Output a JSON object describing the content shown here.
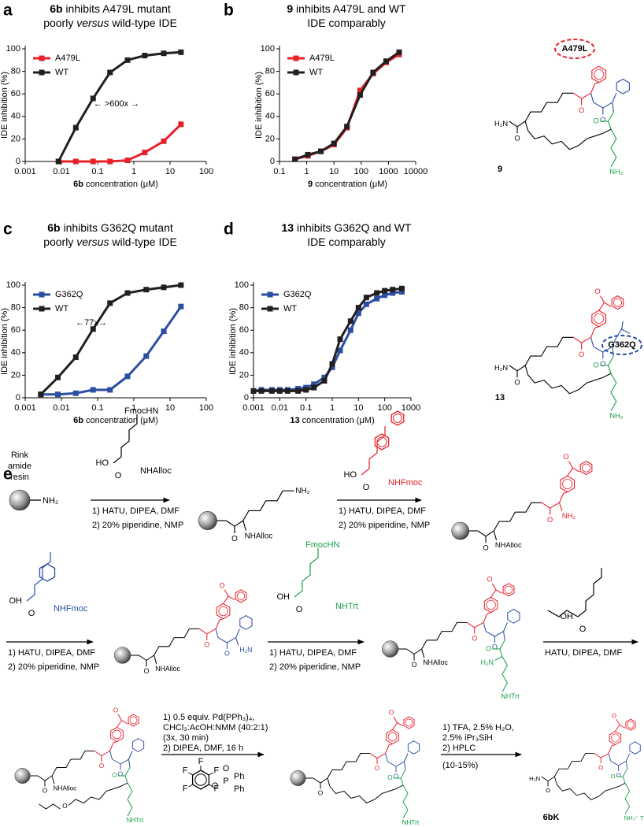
{
  "chart_data": [
    {
      "panel": "a",
      "type": "line",
      "title_lines": [
        [
          "6b",
          " inhibits A479L mutant"
        ],
        [
          "poorly ",
          "versus",
          " wild-type IDE"
        ]
      ],
      "xlabel": [
        "6b",
        " concentration (μM)"
      ],
      "ylabel": "IDE inhibition (%)",
      "x_scale": "log",
      "xlim": [
        0.001,
        100
      ],
      "xticks": [
        0.001,
        0.01,
        0.1,
        1,
        10,
        100
      ],
      "ylim": [
        0,
        100
      ],
      "yticks": [
        0,
        20,
        40,
        60,
        80,
        100
      ],
      "legend": "upper left",
      "annotation": "← >600x →",
      "x": [
        0.0083,
        0.025,
        0.075,
        0.22,
        0.67,
        2,
        6.7,
        20
      ],
      "series": [
        {
          "name": "A479L",
          "color": "#e8202a",
          "values": [
            0,
            0,
            0,
            0,
            1,
            8,
            18,
            33
          ]
        },
        {
          "name": "WT",
          "color": "#231f20",
          "values": [
            0,
            30,
            56,
            79,
            90,
            94,
            96,
            97
          ]
        }
      ]
    },
    {
      "panel": "b",
      "type": "line",
      "title_lines": [
        [
          "9",
          " inhibits A479L and WT"
        ],
        [
          "IDE comparably"
        ]
      ],
      "xlabel": [
        "9",
        " concentration (μM)"
      ],
      "ylabel": "IDE inhibition (%)",
      "x_scale": "log",
      "xlim": [
        0.1,
        10000
      ],
      "xticks": [
        0.1,
        1,
        10,
        100,
        1000,
        10000
      ],
      "ylim": [
        0,
        100
      ],
      "yticks": [
        0,
        20,
        40,
        60,
        80,
        100
      ],
      "legend": "upper left",
      "x": [
        0.37,
        1.1,
        3.3,
        10,
        30,
        91,
        274,
        823,
        2469
      ],
      "series": [
        {
          "name": "A479L",
          "color": "#e8202a",
          "values": [
            2,
            5,
            9,
            15,
            30,
            63,
            78,
            88,
            95
          ]
        },
        {
          "name": "WT",
          "color": "#231f20",
          "values": [
            2,
            6,
            9,
            16,
            31,
            59,
            79,
            89,
            97
          ]
        }
      ]
    },
    {
      "panel": "c",
      "type": "line",
      "title_lines": [
        [
          "6b",
          " inhibits G362Q mutant"
        ],
        [
          "poorly ",
          "versus",
          " wild-type IDE"
        ]
      ],
      "xlabel": [
        "6b",
        " concentration (μM)"
      ],
      "ylabel": "IDE inhibition (%)",
      "x_scale": "log",
      "xlim": [
        0.001,
        100
      ],
      "xticks": [
        0.001,
        0.01,
        0.1,
        1,
        10,
        100
      ],
      "ylim": [
        0,
        100
      ],
      "yticks": [
        0,
        20,
        40,
        60,
        80,
        100
      ],
      "legend": "upper left",
      "annotation": "←77x→",
      "x": [
        0.0027,
        0.008,
        0.025,
        0.075,
        0.22,
        0.67,
        2.2,
        6.7,
        20
      ],
      "series": [
        {
          "name": "G362Q",
          "color": "#2b4ea2",
          "values": [
            3,
            3,
            4,
            7,
            7,
            19,
            37,
            59,
            81
          ]
        },
        {
          "name": "WT",
          "color": "#231f20",
          "values": [
            3,
            18,
            36,
            61,
            84,
            93,
            96,
            98,
            100
          ]
        }
      ]
    },
    {
      "panel": "d",
      "type": "line",
      "title_lines": [
        [
          "13",
          " inhibits G362Q and WT"
        ],
        [
          "IDE comparably"
        ]
      ],
      "xlabel": [
        "13",
        " concentration (μM)"
      ],
      "ylabel": "IDE inhibition (%)",
      "x_scale": "log",
      "xlim": [
        0.001,
        1000
      ],
      "xticks": [
        0.001,
        0.01,
        0.1,
        1,
        10,
        100,
        1000
      ],
      "ylim": [
        0,
        100
      ],
      "yticks": [
        0,
        20,
        40,
        60,
        80,
        100
      ],
      "legend": "upper left",
      "x": [
        0.001,
        0.002,
        0.005,
        0.01,
        0.02,
        0.05,
        0.1,
        0.2,
        0.5,
        1,
        2,
        5,
        10,
        20,
        50,
        100,
        200,
        450
      ],
      "series": [
        {
          "name": "G362Q",
          "color": "#2b4ea2",
          "values": [
            6,
            7,
            7,
            7,
            7,
            8,
            9,
            12,
            18,
            27,
            42,
            60,
            75,
            83,
            88,
            91,
            93,
            94
          ]
        },
        {
          "name": "WT",
          "color": "#231f20",
          "values": [
            6,
            6,
            6,
            6,
            6,
            6,
            7,
            9,
            15,
            30,
            52,
            68,
            80,
            89,
            93,
            95,
            96,
            97
          ]
        }
      ]
    }
  ],
  "structures": [
    {
      "label": "9",
      "mutation": "A479L",
      "color": "#e8202a",
      "atoms": {
        "left": "H₂N",
        "oxo": "O",
        "green": "NH₂"
      }
    },
    {
      "label": "13",
      "mutation": "G362Q",
      "color": "#2b4ea2",
      "atoms": {
        "left": "H₂N",
        "oxo": "O",
        "green": "NH₂"
      }
    }
  ],
  "scheme": {
    "panel": "e",
    "resin": [
      "Rink",
      "amide",
      "resin"
    ],
    "resin_group": "NH₂",
    "steps": [
      {
        "reagent": {
          "amine_top": "FmocHN",
          "acid": "HO",
          "oxo": "O",
          "amine": "NHAlloc"
        },
        "above": [],
        "below": [
          "1) HATU, DIPEA, DMF",
          "2) 20% piperidine, NMP"
        ]
      },
      {
        "reagent": {
          "acid": "HO",
          "oxo": "O",
          "amine": "NHFmoc"
        },
        "above": [],
        "below": [
          "1) HATU, DIPEA, DMF",
          "2) 20% piperidine, NMP"
        ]
      },
      {
        "reagent": {
          "oxo": "O",
          "acid": "OH",
          "amine": "NHFmoc"
        },
        "above": [],
        "below": [
          "1) HATU, DIPEA, DMF",
          "2) 20% piperidine, NMP"
        ]
      },
      {
        "reagent": {
          "amine_top": "FmocHN",
          "acid": "OH",
          "oxo": "O",
          "side": "NHTrt"
        },
        "above": [],
        "below": [
          "1) HATU, DIPEA, DMF",
          "2) 20% piperidine, NMP"
        ]
      },
      {
        "reagent": {
          "oxo": "O",
          "acid": "OH"
        },
        "above": [],
        "below": [
          "HATU, DIPEA, DMF"
        ]
      },
      {
        "reagent": {
          "fluoro": "F",
          "oxo": "O",
          "p": "P",
          "ph": "Ph"
        },
        "above": [
          "1) 0.5 equiv. Pd(PPh₃)₄,",
          "CHCl₃:AcOH:NMM (40:2:1)",
          "(3x, 30 min)",
          "2) DIPEA, DMF, 16 h"
        ],
        "below": []
      },
      {
        "reagent": {},
        "above": [
          "1) TFA, 2.5% H₂O,",
          "2.5% iPr₃SiH",
          "2) HPLC"
        ],
        "below": [
          "(10-15%)"
        ]
      }
    ],
    "intermediates": [
      {
        "oxo": "O",
        "side": "NHAlloc",
        "term": "NH₂"
      },
      {
        "oxo": "O",
        "side": "NHAlloc",
        "term": "NH₂"
      },
      {
        "oxo": "O",
        "side": "NHAlloc",
        "term": "H₂N"
      },
      {
        "oxo": "O",
        "side": "NHAlloc",
        "term": "H₂N",
        "green": "NHTrt"
      },
      {
        "oxo": "O",
        "side": "NHAlloc",
        "green": "NHTrt"
      },
      {
        "oxo": "O",
        "green": "NHTrt"
      }
    ],
    "product": {
      "left": "H₂N",
      "oxo": "O",
      "green": "NH₃⁺ TFA⁻",
      "label": "6bK"
    }
  }
}
